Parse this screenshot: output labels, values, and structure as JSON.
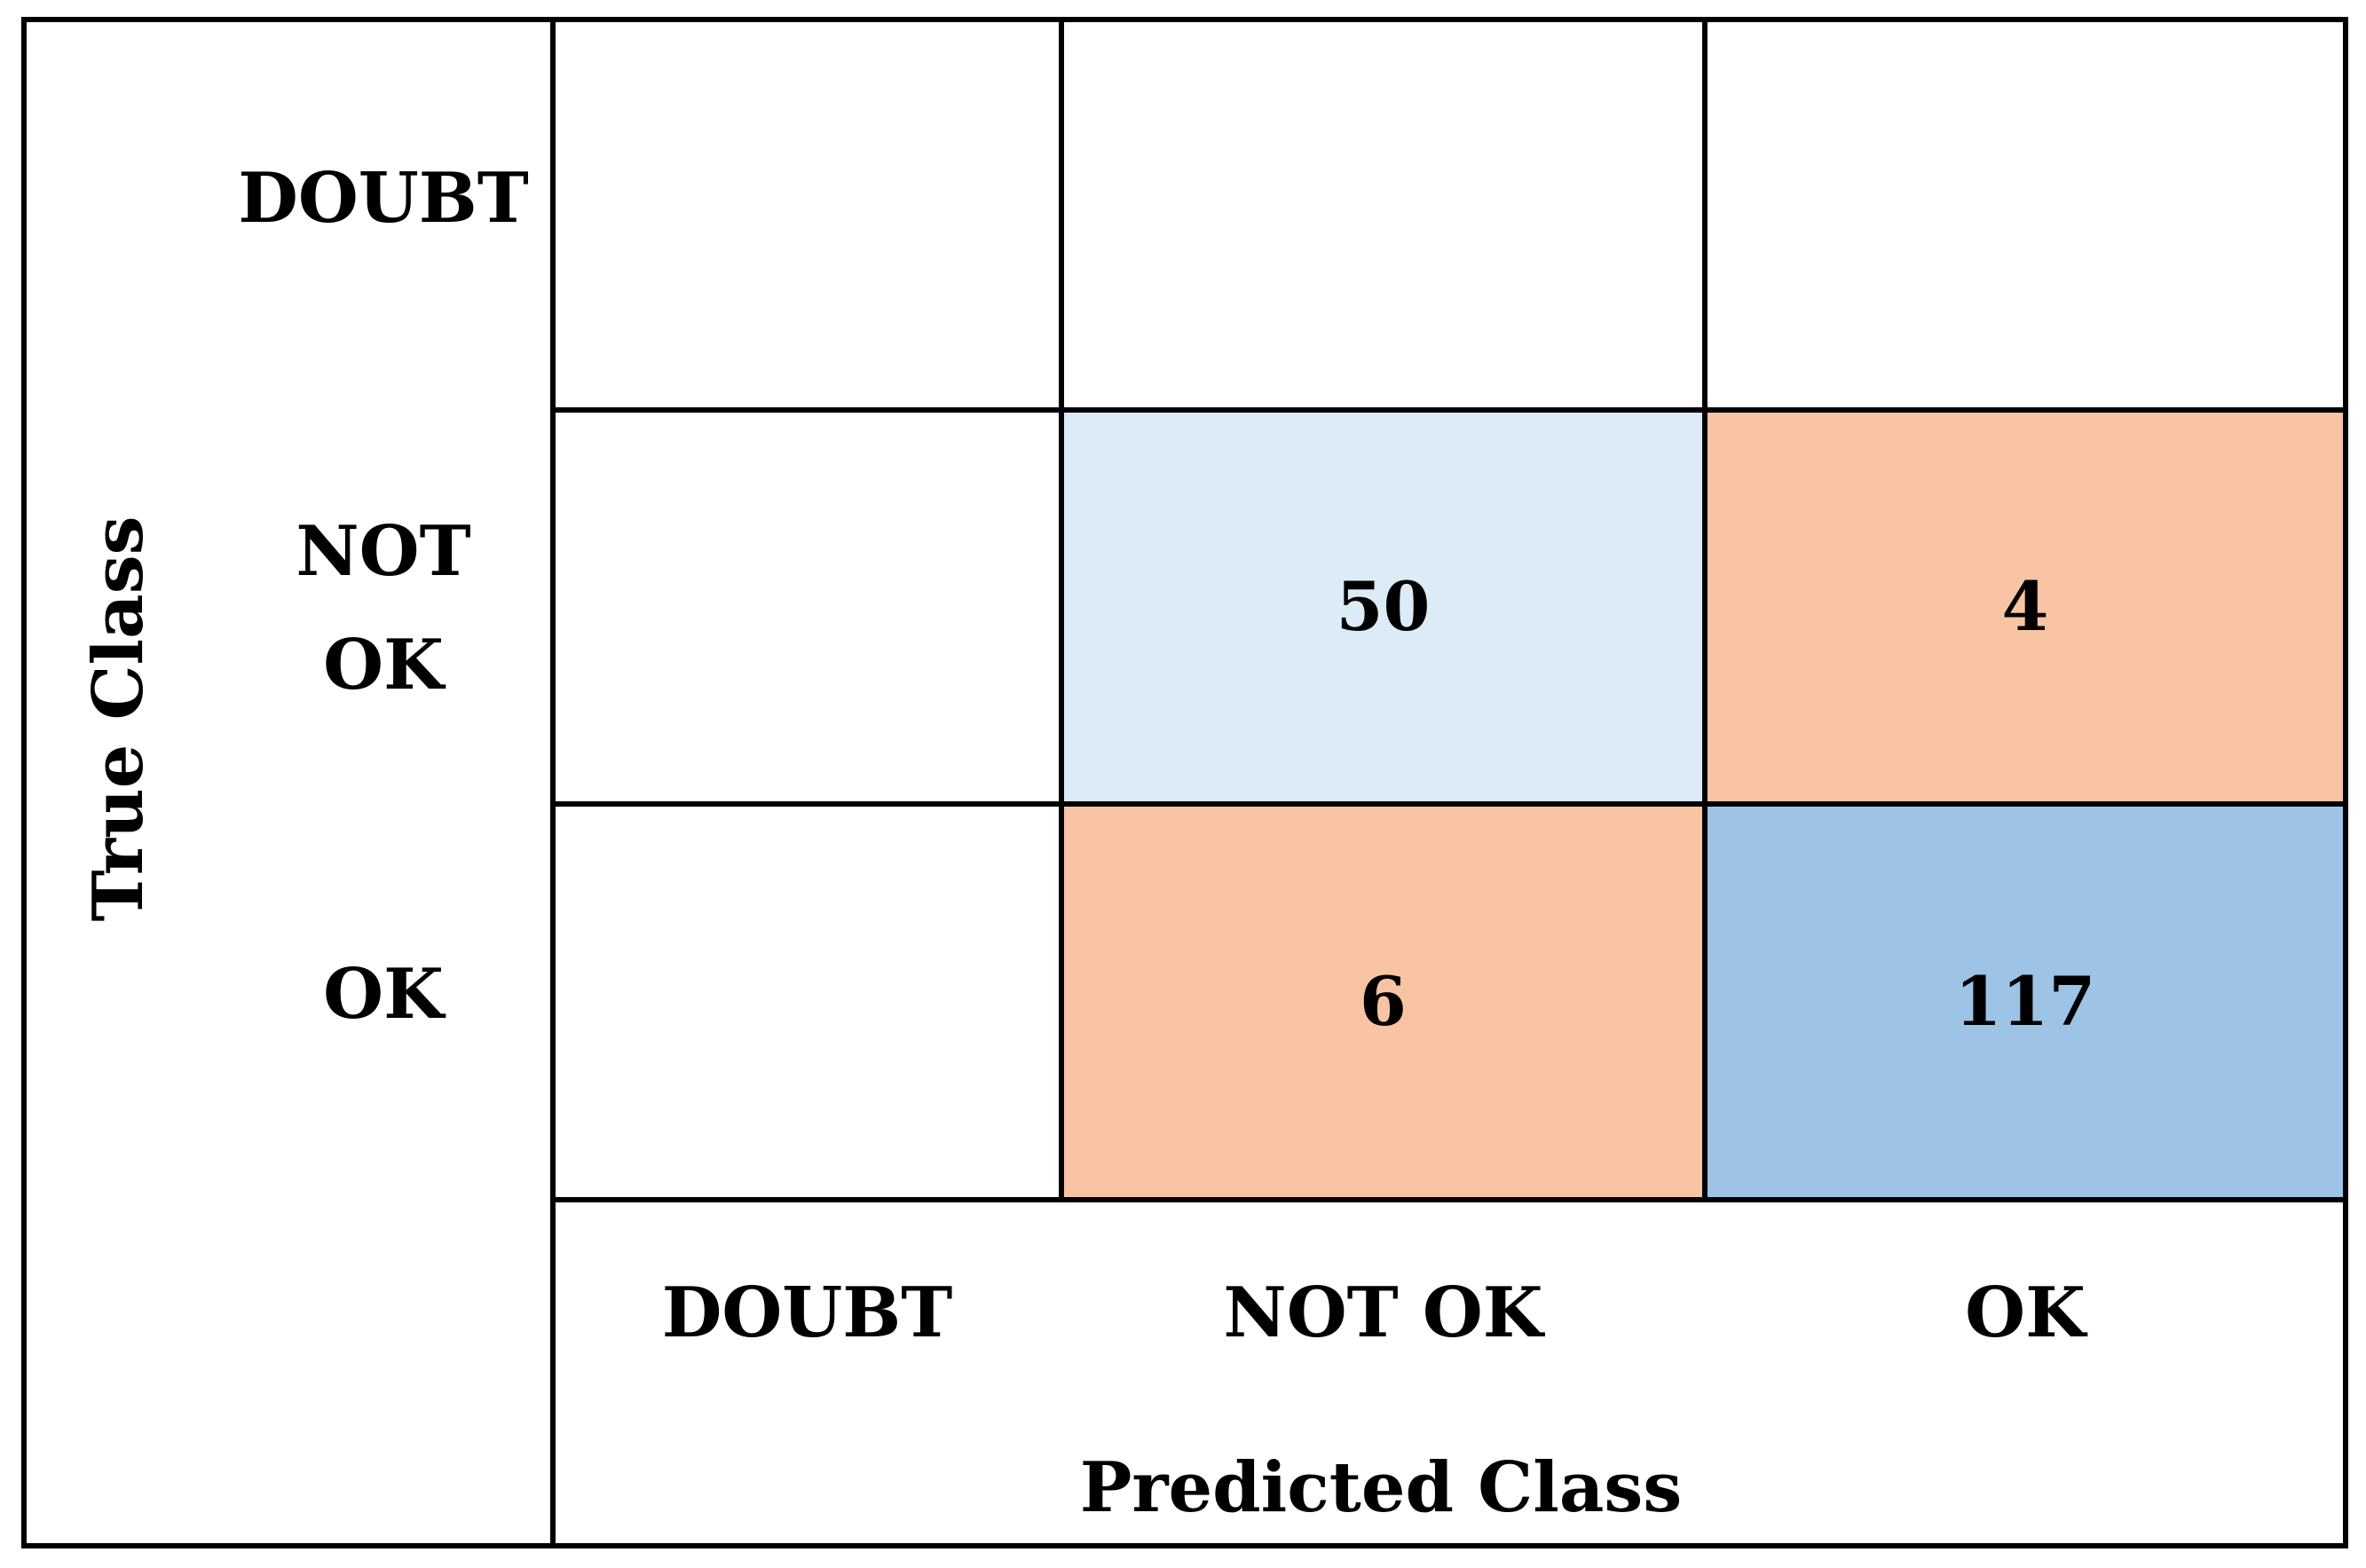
{
  "chart_data": {
    "type": "heatmap",
    "title": "",
    "xlabel": "Predicted Class",
    "ylabel": "True Class",
    "x_categories": [
      "DOUBT",
      "NOT OK",
      "OK"
    ],
    "y_categories": [
      [
        "DOUBT"
      ],
      [
        "NOT",
        "OK"
      ],
      [
        "OK"
      ]
    ],
    "cells": [
      {
        "true": "NOT OK",
        "predicted": "NOT OK",
        "label": "50",
        "value": 50,
        "color": "#ddebf7"
      },
      {
        "true": "NOT OK",
        "predicted": "OK",
        "label": "4",
        "value": 4,
        "color": "#f8c4a4"
      },
      {
        "true": "OK",
        "predicted": "NOT OK",
        "label": "6",
        "value": 6,
        "color": "#f8c4a4"
      },
      {
        "true": "OK",
        "predicted": "OK",
        "label": "117",
        "value": 117,
        "color": "#9dc3e6"
      }
    ],
    "empty_cell_color": "#ffffff",
    "grid_color": "#000000"
  }
}
